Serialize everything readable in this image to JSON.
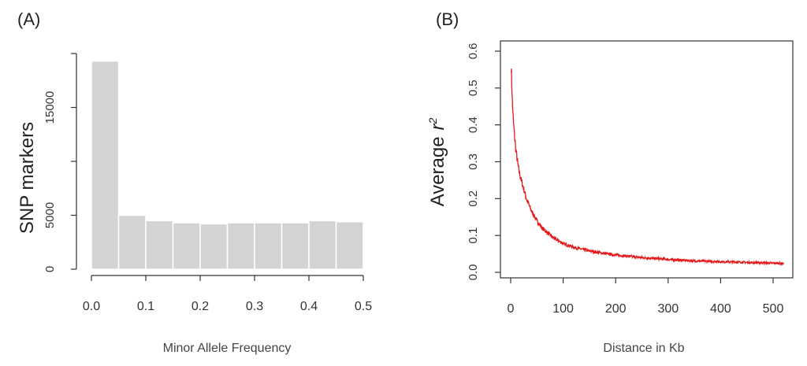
{
  "chart_data": [
    {
      "type": "bar",
      "panel_label": "(A)",
      "xlabel": "Minor Allele Frequency",
      "ylabel": "SNP markers",
      "bin_edges": [
        0.0,
        0.05,
        0.1,
        0.15,
        0.2,
        0.25,
        0.3,
        0.35,
        0.4,
        0.45,
        0.5
      ],
      "values": [
        19300,
        5000,
        4500,
        4300,
        4200,
        4300,
        4300,
        4300,
        4500,
        4400
      ],
      "xlim": [
        0.0,
        0.5
      ],
      "ylim": [
        0,
        20000
      ],
      "x_ticks": [
        "0.0",
        "0.1",
        "0.2",
        "0.3",
        "0.4",
        "0.5"
      ],
      "y_ticks": [
        0,
        5000,
        10000,
        15000
      ],
      "y_tick_labels": [
        "0",
        "5000",
        "",
        "15000"
      ],
      "bar_color": "#d3d3d3",
      "grid": false
    },
    {
      "type": "line",
      "panel_label": "(B)",
      "xlabel": "Distance in Kb",
      "ylabel_prefix": "Average",
      "ylabel_symbol": "r",
      "ylabel_sup": "2",
      "xlim": [
        0,
        520
      ],
      "ylim": [
        0,
        0.6
      ],
      "x_ticks": [
        "0",
        "100",
        "200",
        "300",
        "400",
        "500"
      ],
      "y_ticks": [
        "0.0",
        "0.1",
        "0.2",
        "0.3",
        "0.4",
        "0.5",
        "0.6"
      ],
      "line_color": "#e41a1c",
      "grid": false,
      "series": [
        {
          "x": [
            1,
            3,
            5,
            8,
            10,
            15,
            20,
            25,
            30,
            40,
            50,
            60,
            80,
            100,
            125,
            150,
            175,
            200,
            250,
            300,
            350,
            400,
            450,
            500,
            520
          ],
          "y": [
            0.56,
            0.47,
            0.41,
            0.36,
            0.33,
            0.28,
            0.25,
            0.225,
            0.2,
            0.165,
            0.14,
            0.12,
            0.095,
            0.078,
            0.066,
            0.058,
            0.052,
            0.047,
            0.04,
            0.035,
            0.031,
            0.029,
            0.027,
            0.025,
            0.024
          ]
        }
      ]
    }
  ]
}
